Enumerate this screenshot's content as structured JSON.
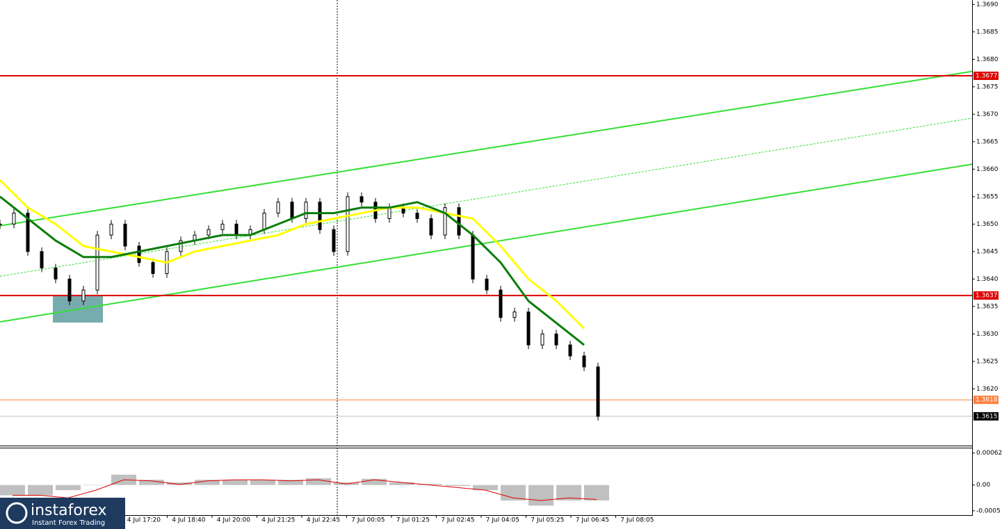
{
  "chart_data": {
    "type": "candlestick",
    "ylim": [
      1.36098,
      1.36908
    ],
    "yticks": [
      {
        "value": 1.369,
        "label": "1.3690"
      },
      1.3685,
      {
        "value": 1.368,
        "label": "1.3680"
      },
      1.3675,
      {
        "value": 1.367,
        "label": "1.3670"
      },
      1.3665,
      {
        "value": 1.366,
        "label": "1.3660"
      },
      1.3655,
      {
        "value": 1.365,
        "label": "1.3650"
      },
      1.3645,
      {
        "value": 1.364,
        "label": "1.3640"
      },
      1.3635,
      {
        "value": 1.363,
        "label": "1.3630"
      },
      1.3625,
      {
        "value": 1.362,
        "label": "1.3620"
      }
    ],
    "xticks": [
      "4 Jul 17:20",
      "4 Jul 18:40",
      "4 Jul 20:00",
      "4 Jul 21:25",
      "4 Jul 22:45",
      "7 Jul 00:05",
      "7 Jul 01:25",
      "7 Jul 02:45",
      "7 Jul 04:05",
      "7 Jul 05:25",
      "7 Jul 06:45",
      "7 Jul 08:05"
    ],
    "close": [
      1.365,
      1.3652,
      1.3645,
      1.3642,
      1.364,
      1.3636,
      1.3638,
      1.3648,
      1.365,
      1.3646,
      1.3643,
      1.3641,
      1.3645,
      1.3647,
      1.3648,
      1.3649,
      1.365,
      1.3648,
      1.3649,
      1.3652,
      1.3654,
      1.3651,
      1.3654,
      1.3649,
      1.3645,
      1.3655,
      1.3654,
      1.3651,
      1.3653,
      1.3652,
      1.3651,
      1.3648,
      1.3653,
      1.3648,
      1.364,
      1.3638,
      1.3633,
      1.3634,
      1.3628,
      1.363,
      1.3628,
      1.3626,
      1.3624,
      1.3615
    ],
    "series": [
      {
        "color": "#ffff00",
        "values": [
          1.3658,
          1.3653,
          1.365,
          1.3646,
          1.3645,
          1.3644,
          1.3643,
          1.3645,
          1.3646,
          1.3647,
          1.3648,
          1.365,
          1.3651,
          1.3652,
          1.3653,
          1.3653,
          1.3652,
          1.3651,
          1.3646,
          1.364,
          1.3636,
          1.3631
        ]
      },
      {
        "color": "#0a7d0a",
        "values": [
          1.3655,
          1.3651,
          1.3647,
          1.3644,
          1.3644,
          1.3645,
          1.3646,
          1.3647,
          1.3648,
          1.3648,
          1.365,
          1.3652,
          1.3652,
          1.3653,
          1.3653,
          1.3654,
          1.3652,
          1.3648,
          1.3643,
          1.3636,
          1.3632,
          1.3628
        ]
      }
    ],
    "trendlines": [
      {
        "color": "#33e033",
        "values": [
          1.36497,
          1.36778
        ]
      },
      {
        "color": "#33e033",
        "values": [
          1.36322,
          1.36609
        ]
      },
      {
        "color": "#33e033",
        "values": [
          1.36405,
          1.36693
        ],
        "dashed": true
      }
    ],
    "levels": [
      {
        "value": 1.3677,
        "color": "#e00000"
      },
      {
        "value": 1.3637,
        "color": "#e00000"
      },
      {
        "value": 1.3618,
        "color": "#ff8040"
      }
    ],
    "current": 1.3615,
    "indicator": {
      "ylim": [
        -0.00057,
        0.00071
      ],
      "yticks": [
        0.00062,
        {
          "value": 0,
          "label": "0.00"
        },
        {
          "value": -0.0005,
          "label": "-0.0005"
        }
      ],
      "histogram": [
        -0.0002,
        -0.0002,
        -0.0001,
        0,
        0.0002,
        0.0001,
        5e-05,
        0.0001,
        0.0001,
        0.0001,
        0.0001,
        0.00013,
        5e-05,
        0.00012,
        5e-05,
        2e-05,
        -2e-05,
        -0.0001,
        -0.0003,
        -0.0004,
        -0.0003,
        -0.0003
      ],
      "signal": [
        -0.0002,
        -0.0002,
        -0.00025,
        -0.0001,
        0.0001,
        8e-05,
        1e-05,
        8e-05,
        0.0001,
        0.0001,
        8e-05,
        0.0001,
        2e-05,
        0.0001,
        5e-05,
        0,
        -5e-05,
        -0.0001,
        -0.00025,
        -0.0003,
        -0.00025,
        -0.00028
      ]
    }
  },
  "logo": {
    "name": "instaforex",
    "tagline": "Instant Forex Trading"
  }
}
